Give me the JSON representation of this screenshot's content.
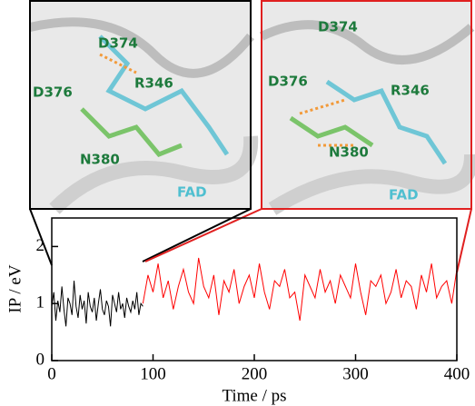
{
  "chart_data": {
    "type": "line",
    "xlabel": "Time / ps",
    "ylabel": "IP / eV",
    "xlim": [
      0,
      400
    ],
    "ylim": [
      0,
      2.5
    ],
    "xticks": [
      0,
      100,
      200,
      300,
      400
    ],
    "yticks": [
      0,
      1,
      2
    ],
    "series": [
      {
        "color": "#000000",
        "x": [
          0,
          2,
          4,
          6,
          8,
          10,
          12,
          14,
          16,
          18,
          20,
          22,
          24,
          26,
          28,
          30,
          32,
          34,
          36,
          38,
          40,
          42,
          44,
          46,
          48,
          50,
          52,
          54,
          56,
          58,
          60,
          62,
          64,
          66,
          68,
          70,
          72,
          74,
          76,
          78,
          80,
          82,
          84,
          86,
          88,
          90
        ],
        "values": [
          0.95,
          1.2,
          0.7,
          1.05,
          0.85,
          1.3,
          0.9,
          0.6,
          1.1,
          1.0,
          0.8,
          1.4,
          0.95,
          0.75,
          1.15,
          0.9,
          1.05,
          0.65,
          1.2,
          0.95,
          0.85,
          1.1,
          0.7,
          1.0,
          1.25,
          0.9,
          0.8,
          1.05,
          0.95,
          0.6,
          1.15,
          1.0,
          0.85,
          1.2,
          0.9,
          1.0,
          0.75,
          1.1,
          0.95,
          0.85,
          1.05,
          0.9,
          1.2,
          0.8,
          1.0,
          0.95
        ]
      },
      {
        "color": "#ff0000",
        "x": [
          90,
          95,
          100,
          105,
          110,
          115,
          120,
          125,
          130,
          135,
          140,
          145,
          150,
          155,
          160,
          165,
          170,
          175,
          180,
          185,
          190,
          195,
          200,
          205,
          210,
          215,
          220,
          225,
          230,
          235,
          240,
          245,
          250,
          255,
          260,
          265,
          270,
          275,
          280,
          285,
          290,
          295,
          300,
          305,
          310,
          315,
          320,
          325,
          330,
          335,
          340,
          345,
          350,
          355,
          360,
          365,
          370,
          375,
          380,
          385,
          390,
          395,
          400
        ],
        "values": [
          1.0,
          1.5,
          1.2,
          1.7,
          1.1,
          1.4,
          0.9,
          1.3,
          1.6,
          1.2,
          1.0,
          1.8,
          1.3,
          1.1,
          1.5,
          0.8,
          1.4,
          1.2,
          1.6,
          1.0,
          1.3,
          1.5,
          1.1,
          1.7,
          1.2,
          0.9,
          1.4,
          1.3,
          1.6,
          1.1,
          1.2,
          0.7,
          1.5,
          1.3,
          1.1,
          1.6,
          1.2,
          1.4,
          1.0,
          1.5,
          1.3,
          1.1,
          1.7,
          1.2,
          0.8,
          1.4,
          1.3,
          1.5,
          1.0,
          1.2,
          1.6,
          1.1,
          1.4,
          1.3,
          0.9,
          1.5,
          1.2,
          1.7,
          1.1,
          1.3,
          1.4,
          1.0,
          1.6
        ]
      }
    ]
  },
  "panels": [
    {
      "labels": [
        "D374",
        "R346",
        "D376",
        "N380",
        "FAD"
      ]
    },
    {
      "labels": [
        "D374",
        "R346",
        "D376",
        "N380",
        "FAD"
      ]
    }
  ]
}
